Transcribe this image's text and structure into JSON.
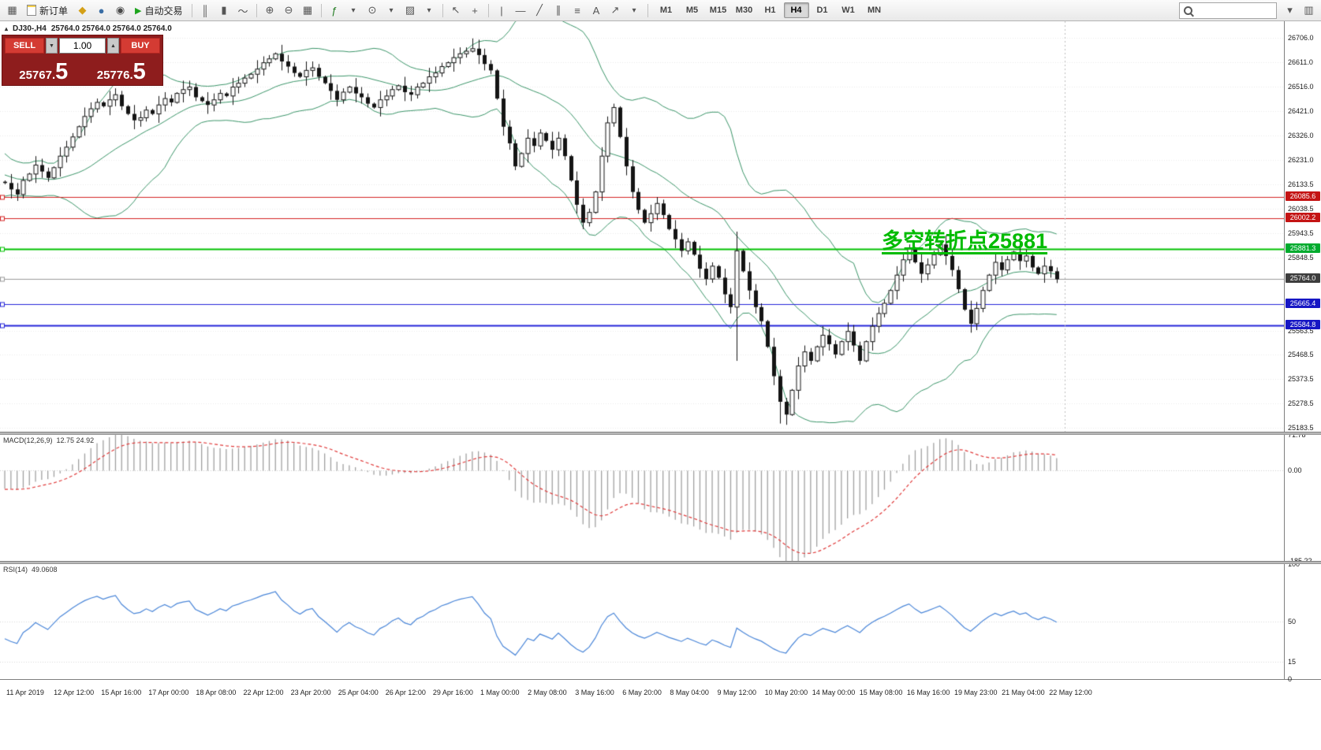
{
  "toolbar": {
    "new_order": "新订单",
    "auto_trading": "自动交易",
    "timeframes": [
      "M1",
      "M5",
      "M15",
      "M30",
      "H1",
      "H4",
      "D1",
      "W1",
      "MN"
    ],
    "active_timeframe": "H4",
    "search_placeholder": ""
  },
  "chart_header": {
    "symbol_period": "DJ30-,H4",
    "ohlc": "25764.0 25764.0 25764.0 25764.0"
  },
  "trade_panel": {
    "sell_label": "SELL",
    "buy_label": "BUY",
    "volume": "1.00",
    "sell_price_main": "25767.",
    "sell_price_big": "5",
    "buy_price_main": "25776.",
    "buy_price_big": "5"
  },
  "annotation": "多空转折点25881",
  "indicators": {
    "macd_label": "MACD(12,26,9)",
    "macd_values": "12.75 24.92",
    "macd_scale": [
      "71.78",
      "0.00",
      "-185.22"
    ],
    "rsi_label": "RSI(14)",
    "rsi_values": "49.0608",
    "rsi_scale": [
      "100",
      "50",
      "15",
      "0"
    ]
  },
  "price_axis": {
    "labels": [
      26706.0,
      26611.0,
      26516.0,
      26421.0,
      26326.0,
      26231.0,
      26133.5,
      26038.5,
      25943.5,
      25848.5,
      25563.5,
      25468.5,
      25373.5,
      25278.5,
      25183.5
    ],
    "tags": [
      {
        "price": "26085.6",
        "color": "#c41414"
      },
      {
        "price": "26002.2",
        "color": "#c41414"
      },
      {
        "price": "25881.3",
        "color": "#00ab2e"
      },
      {
        "price": "25764.0",
        "color": "#3d3d3d"
      },
      {
        "price": "25665.4",
        "color": "#1616c4"
      },
      {
        "price": "25584.8",
        "color": "#1616c4"
      }
    ]
  },
  "time_axis": [
    "11 Apr 2019",
    "12 Apr 12:00",
    "15 Apr 16:00",
    "17 Apr 00:00",
    "18 Apr 08:00",
    "22 Apr 12:00",
    "23 Apr 20:00",
    "25 Apr 04:00",
    "26 Apr 12:00",
    "29 Apr 16:00",
    "1 May 00:00",
    "2 May 08:00",
    "3 May 16:00",
    "6 May 20:00",
    "8 May 04:00",
    "9 May 12:00",
    "10 May 20:00",
    "14 May 00:00",
    "15 May 08:00",
    "16 May 16:00",
    "19 May 23:00",
    "21 May 04:00",
    "22 May 12:00"
  ],
  "chart_data": {
    "type": "candlestick",
    "symbol": "DJ30-",
    "period": "H4",
    "title": "DJ30-,H4",
    "price_min": 25168,
    "price_max": 26772,
    "current_price": 25764.0,
    "history_closes": [
      26320,
      26280,
      26240,
      26200,
      26170,
      26150,
      26180,
      26220,
      26200,
      26160,
      26140,
      26170,
      26200,
      26180,
      26150,
      26120,
      26100,
      26130,
      26160,
      26145
    ],
    "closes": [
      26140,
      26115,
      26095,
      26150,
      26175,
      26210,
      26185,
      26160,
      26200,
      26245,
      26280,
      26320,
      26360,
      26400,
      26430,
      26455,
      26440,
      26465,
      26485,
      26440,
      26410,
      26385,
      26395,
      26425,
      26410,
      26445,
      26470,
      26455,
      26490,
      26505,
      26515,
      26475,
      26460,
      26445,
      26465,
      26490,
      26480,
      26515,
      26530,
      26550,
      26565,
      26585,
      26610,
      26625,
      26645,
      26615,
      26595,
      26570,
      26555,
      26580,
      26590,
      26555,
      26530,
      26500,
      26465,
      26495,
      26515,
      26490,
      26475,
      26450,
      26435,
      26465,
      26480,
      26505,
      26520,
      26495,
      26485,
      26515,
      26530,
      26555,
      26570,
      26595,
      26610,
      26630,
      26645,
      26655,
      26665,
      26640,
      26605,
      26580,
      26470,
      26360,
      26295,
      26205,
      26255,
      26315,
      26285,
      26335,
      26305,
      26270,
      26315,
      26245,
      26150,
      26055,
      25985,
      26025,
      26105,
      26245,
      26375,
      26435,
      26320,
      26205,
      26105,
      26035,
      25985,
      26020,
      26060,
      26015,
      25960,
      25920,
      25875,
      25910,
      25860,
      25805,
      25765,
      25815,
      25770,
      25705,
      25655,
      25875,
      25795,
      25720,
      25655,
      25600,
      25500,
      25385,
      25285,
      25235,
      25330,
      25425,
      25480,
      25445,
      25500,
      25545,
      25510,
      25470,
      25520,
      25560,
      25505,
      25445,
      25520,
      25580,
      25630,
      25670,
      25720,
      25780,
      25840,
      25885,
      25830,
      25785,
      25820,
      25860,
      25900,
      25855,
      25800,
      25725,
      25645,
      25590,
      25650,
      25720,
      25780,
      25830,
      25800,
      25840,
      25870,
      25835,
      25855,
      25810,
      25785,
      25815,
      25795,
      25764
    ],
    "wick_overrides": {
      "18": {
        "high": 26510
      },
      "76": {
        "high": 26705
      },
      "119": {
        "high": 25950,
        "low": 25445
      },
      "126": {
        "low": 25200
      },
      "127": {
        "low": 25195
      }
    },
    "bollinger": {
      "period": 20,
      "deviation": 2,
      "color": "#3a9468"
    },
    "hlines": [
      {
        "price": 26085.6,
        "color": "#d42222",
        "width": 1
      },
      {
        "price": 26002.2,
        "color": "#d42222",
        "width": 1
      },
      {
        "price": 25881.3,
        "color": "#00c000",
        "width": 2
      },
      {
        "price": 25764.0,
        "color": "#9a9a9a",
        "width": 1
      },
      {
        "price": 25665.4,
        "color": "#2424d8",
        "width": 1
      },
      {
        "price": 25584.8,
        "color": "#2424d8",
        "width": 2
      }
    ],
    "macd": {
      "fast": 12,
      "slow": 26,
      "signal": 9,
      "range": [
        -185.22,
        71.78
      ],
      "histogram_color": "#a0a0a0",
      "signal_color": "#e03a3a"
    },
    "rsi": {
      "period": 14,
      "range": [
        0,
        100
      ],
      "color": "#4a86d8",
      "levels": [
        50,
        15
      ]
    }
  }
}
